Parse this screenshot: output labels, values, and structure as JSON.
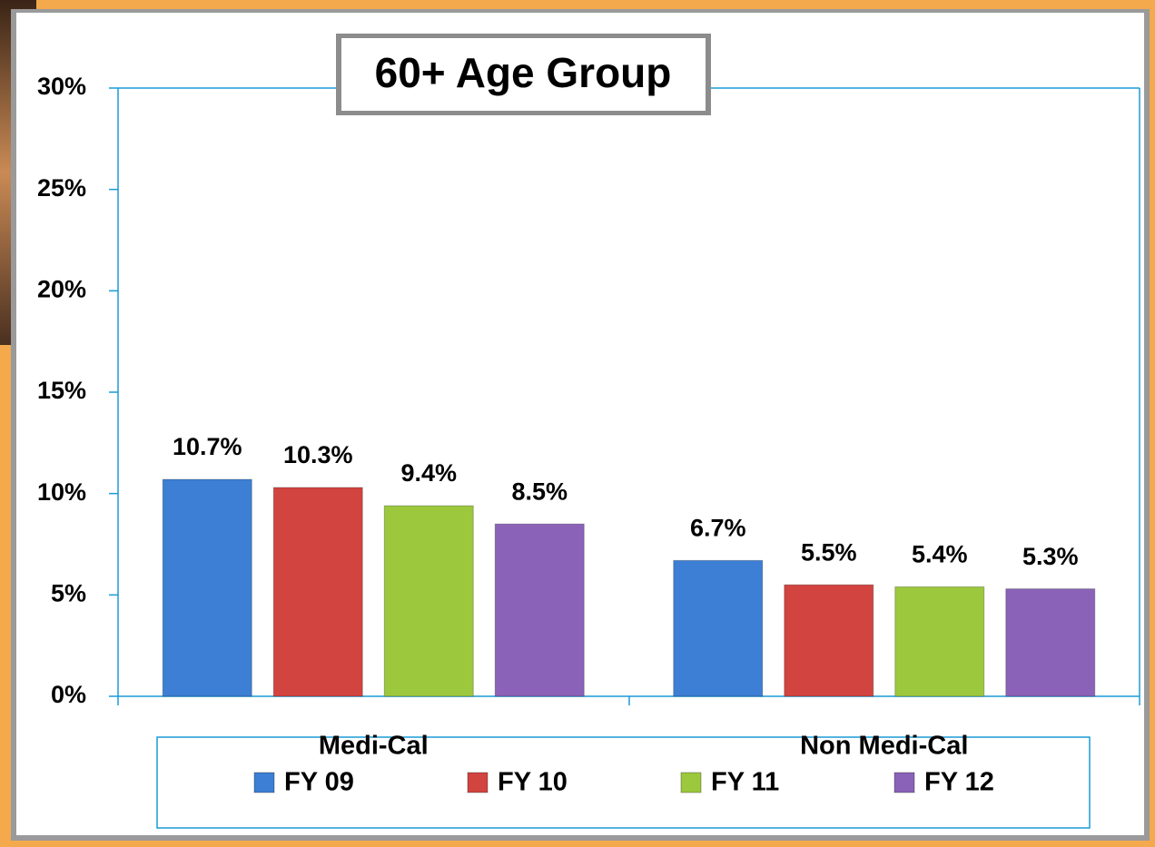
{
  "chart_data": {
    "type": "bar",
    "title": "60+ Age Group",
    "categories": [
      "Medi-Cal",
      "Non Medi-Cal"
    ],
    "series": [
      {
        "name": "FY 09",
        "color": "#3c7fd4",
        "values": [
          10.7,
          6.7
        ],
        "value_labels": [
          "10.7%",
          "6.7%"
        ]
      },
      {
        "name": "FY 10",
        "color": "#d24440",
        "values": [
          10.3,
          5.5
        ],
        "value_labels": [
          "10.3%",
          "5.5%"
        ]
      },
      {
        "name": "FY 11",
        "color": "#9cc83e",
        "values": [
          9.4,
          5.4
        ],
        "value_labels": [
          "9.4%",
          "5.4%"
        ]
      },
      {
        "name": "FY 12",
        "color": "#8a63b8",
        "values": [
          8.5,
          5.3
        ],
        "value_labels": [
          "8.5%",
          "5.3%"
        ]
      }
    ],
    "ylim": [
      0,
      30
    ],
    "yticks": [
      {
        "value": 0,
        "label": "0%"
      },
      {
        "value": 5,
        "label": "5%"
      },
      {
        "value": 10,
        "label": "10%"
      },
      {
        "value": 15,
        "label": "15%"
      },
      {
        "value": 20,
        "label": "20%"
      },
      {
        "value": 25,
        "label": "25%"
      },
      {
        "value": 30,
        "label": "30%"
      }
    ],
    "grid": false,
    "legend": "bottom"
  }
}
